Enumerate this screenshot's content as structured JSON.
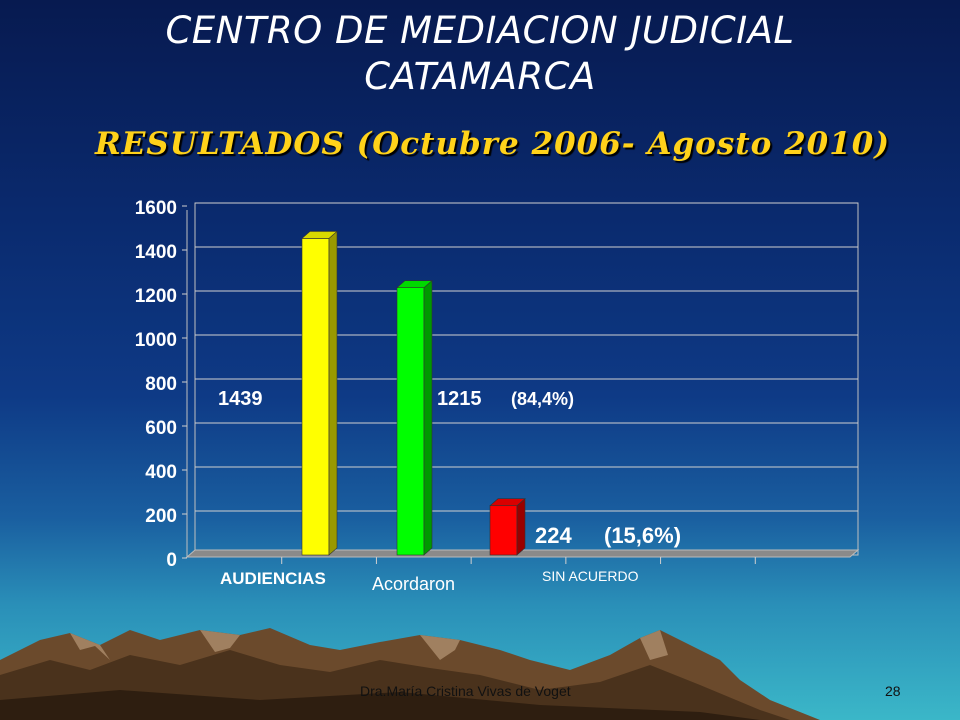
{
  "slide": {
    "title_line1": "CENTRO DE MEDIACION JUDICIAL",
    "title_line2": "CATAMARCA",
    "subtitle": "RESULTADOS (Octubre 2006- Agosto 2010)",
    "footer": "Dra.María Cristina Vivas de Voget",
    "page_number": "28"
  },
  "chart_data": {
    "type": "bar",
    "categories": [
      "AUDIENCIAS",
      "Acordaron",
      "SIN ACUERDO"
    ],
    "values": [
      1439,
      1215,
      224
    ],
    "value_labels": [
      "1439",
      "1215",
      "224"
    ],
    "percent_labels": [
      "",
      "(84,4%)",
      "(15,6%)"
    ],
    "colors": [
      "#ffff00",
      "#00ff00",
      "#ff0000"
    ],
    "ylim": [
      0,
      1600
    ],
    "yticks": [
      "0",
      "200",
      "400",
      "600",
      "800",
      "1000",
      "1200",
      "1400",
      "1600"
    ],
    "grid": true,
    "style": "3d"
  }
}
